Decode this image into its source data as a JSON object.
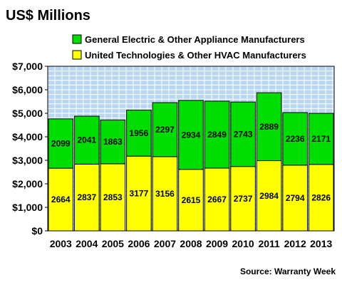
{
  "colors": {
    "series_top": "#00dd00",
    "series_bottom": "#ffff00",
    "plot_bg": "#b9d7f0",
    "grid": "#ffffff",
    "outline": "#000000"
  },
  "chart_data": {
    "type": "bar",
    "stacked": true,
    "title": "US$ Millions",
    "categories": [
      "2003",
      "2004",
      "2005",
      "2006",
      "2007",
      "2008",
      "2009",
      "2010",
      "2011",
      "2012",
      "2013"
    ],
    "series": [
      {
        "name": "United Technologies & Other HVAC Manufacturers",
        "color": "#ffff00",
        "values": [
          2664,
          2837,
          2853,
          3177,
          3156,
          2615,
          2667,
          2737,
          2984,
          2794,
          2826
        ]
      },
      {
        "name": "General Electric & Other Appliance Manufacturers",
        "color": "#00dd00",
        "values": [
          2099,
          2041,
          1863,
          1956,
          2297,
          2934,
          2849,
          2743,
          2889,
          2236,
          2171
        ]
      }
    ],
    "ylim": [
      0,
      7000
    ],
    "yticks": [
      0,
      1000,
      2000,
      3000,
      4000,
      5000,
      6000,
      7000
    ],
    "ytick_labels": [
      "$0",
      "$1,000",
      "$2,000",
      "$3,000",
      "$4,000",
      "$5,000",
      "$6,000",
      "$7,000"
    ],
    "legend_placement": "top",
    "grid": true,
    "source": "Source: Warranty Week"
  }
}
